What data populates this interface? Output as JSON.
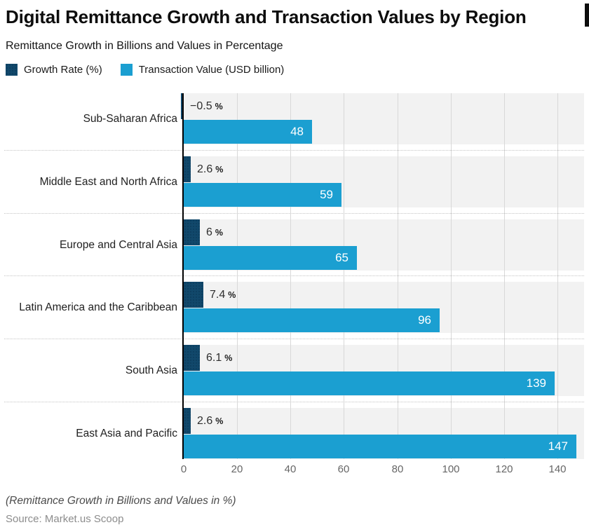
{
  "header": {
    "title": "Digital Remittance Growth and Transaction Values by Region",
    "subtitle": "Remittance Growth in Billions and Values in Percentage"
  },
  "chart_data": {
    "type": "bar",
    "orientation": "horizontal",
    "title": "Digital Remittance Growth and Transaction Values by Region",
    "subtitle": "Remittance Growth in Billions and Values in Percentage",
    "categories": [
      "Sub-Saharan Africa",
      "Middle East and North Africa",
      "Europe and Central Asia",
      "Latin America and the Caribbean",
      "South Asia",
      "East Asia and Pacific"
    ],
    "series": [
      {
        "name": "Growth Rate (%)",
        "values": [
          -0.5,
          2.6,
          6,
          7.4,
          6.1,
          2.6
        ],
        "display_labels": [
          "−0.5",
          "2.6",
          "6",
          "7.4",
          "6.1",
          "2.6"
        ],
        "value_suffix": "%",
        "color": "#11486b"
      },
      {
        "name": "Transaction Value (USD billion)",
        "values": [
          48,
          59,
          65,
          96,
          139,
          147
        ],
        "display_labels": [
          "48",
          "59",
          "65",
          "96",
          "139",
          "147"
        ],
        "color": "#1b9fd1"
      }
    ],
    "x_ticks": [
      0,
      20,
      40,
      60,
      80,
      100,
      120,
      140
    ],
    "xlim": [
      0,
      150
    ],
    "grid": true,
    "plot_background": "#f2f2f2",
    "legend_position": "top"
  },
  "footer": {
    "note": "(Remittance Growth in Billions and Values in %)",
    "source": "Source: Market.us Scoop"
  }
}
